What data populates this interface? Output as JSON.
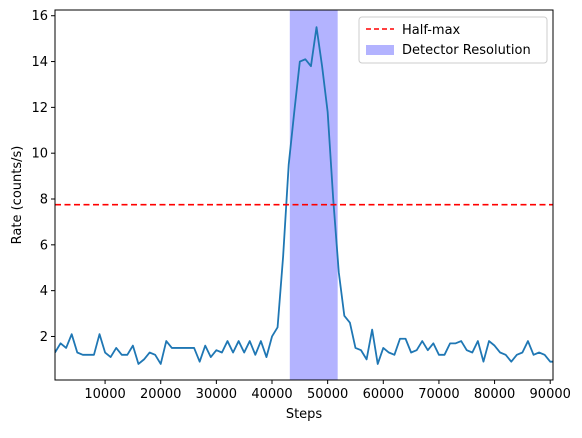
{
  "chart_data": {
    "type": "line",
    "xlabel": "Steps",
    "ylabel": "Rate (counts/s)",
    "xlim": [
      1000,
      90500
    ],
    "ylim": [
      0.1,
      16.25
    ],
    "xticks": [
      10000,
      20000,
      30000,
      40000,
      50000,
      60000,
      70000,
      80000,
      90000
    ],
    "xtick_labels": [
      "10000",
      "20000",
      "30000",
      "40000",
      "50000",
      "60000",
      "70000",
      "80000",
      "90000"
    ],
    "yticks": [
      2,
      4,
      6,
      8,
      10,
      12,
      14,
      16
    ],
    "ytick_labels": [
      "2",
      "4",
      "6",
      "8",
      "10",
      "12",
      "14",
      "16"
    ],
    "grid": false,
    "legend_position": "top-right",
    "series": [
      {
        "color": "#1f77b4",
        "x": [
          1000,
          2000,
          3000,
          4000,
          5000,
          6000,
          7000,
          8000,
          9000,
          10000,
          11000,
          12000,
          13000,
          14000,
          15000,
          16000,
          17000,
          18000,
          19000,
          20000,
          21000,
          22000,
          23000,
          24000,
          25000,
          26000,
          27000,
          28000,
          29000,
          30000,
          31000,
          32000,
          33000,
          34000,
          35000,
          36000,
          37000,
          38000,
          39000,
          40000,
          41000,
          42000,
          43000,
          44000,
          45000,
          46000,
          47000,
          48000,
          49000,
          50000,
          51000,
          52000,
          53000,
          54000,
          55000,
          56000,
          57000,
          58000,
          59000,
          60000,
          61000,
          62000,
          63000,
          64000,
          65000,
          66000,
          67000,
          68000,
          69000,
          70000,
          71000,
          72000,
          73000,
          74000,
          75000,
          76000,
          77000,
          78000,
          79000,
          80000,
          81000,
          82000,
          83000,
          84000,
          85000,
          86000,
          87000,
          88000,
          89000,
          90000,
          90500
        ],
        "y": [
          1.3,
          1.7,
          1.5,
          2.1,
          1.3,
          1.2,
          1.2,
          1.2,
          2.1,
          1.3,
          1.1,
          1.5,
          1.2,
          1.2,
          1.6,
          0.8,
          1.0,
          1.3,
          1.2,
          0.8,
          1.8,
          1.5,
          1.5,
          1.5,
          1.5,
          1.5,
          0.9,
          1.6,
          1.1,
          1.4,
          1.3,
          1.8,
          1.3,
          1.8,
          1.3,
          1.8,
          1.2,
          1.8,
          1.1,
          2.0,
          2.4,
          5.5,
          9.5,
          11.8,
          14.0,
          14.1,
          13.8,
          15.5,
          13.8,
          11.8,
          8.0,
          4.8,
          2.9,
          2.6,
          1.5,
          1.4,
          1.0,
          2.3,
          0.8,
          1.5,
          1.3,
          1.2,
          1.9,
          1.9,
          1.3,
          1.4,
          1.8,
          1.4,
          1.7,
          1.2,
          1.2,
          1.7,
          1.7,
          1.8,
          1.4,
          1.3,
          1.8,
          0.9,
          1.8,
          1.6,
          1.3,
          1.2,
          0.9,
          1.2,
          1.3,
          1.8,
          1.2,
          1.3,
          1.2,
          0.9,
          0.9
        ]
      }
    ],
    "half_max": {
      "label": "Half-max",
      "value": 7.75,
      "color": "#ff0000"
    },
    "resolution_band": {
      "label": "Detector Resolution",
      "x_start": 43200,
      "x_end": 51800,
      "color": "#b3b3ff"
    }
  }
}
